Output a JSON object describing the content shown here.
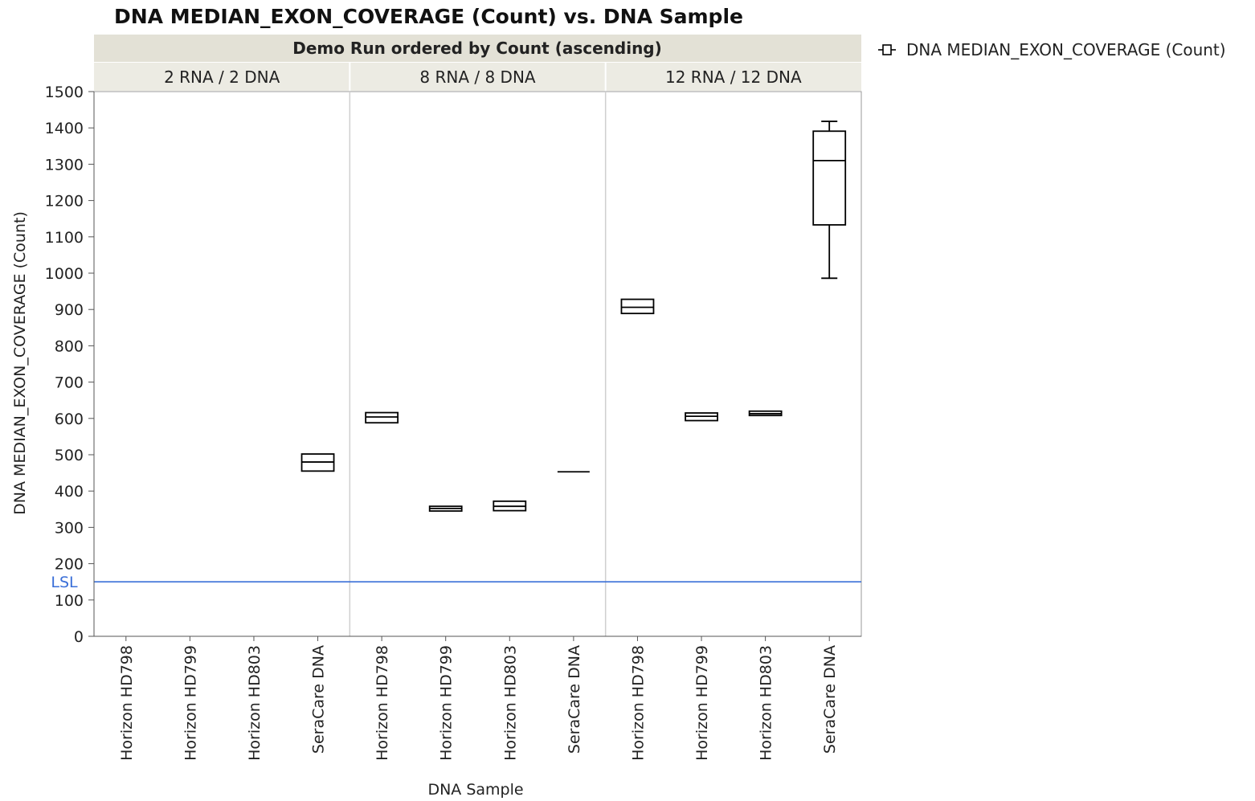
{
  "chart_data": {
    "type": "box",
    "title": "DNA MEDIAN_EXON_COVERAGE (Count) vs. DNA Sample",
    "group_header": "Demo Run ordered by Count (ascending)",
    "xlabel": "DNA Sample",
    "ylabel": "DNA MEDIAN_EXON_COVERAGE (Count)",
    "ylim": [
      0,
      1500
    ],
    "y_ticks": [
      0,
      100,
      200,
      300,
      400,
      500,
      600,
      700,
      800,
      900,
      1000,
      1100,
      1200,
      1300,
      1400,
      1500
    ],
    "legend": {
      "label": "DNA MEDIAN_EXON_COVERAGE (Count)",
      "position": "top-right"
    },
    "reference_line": {
      "label": "LSL",
      "value": 150,
      "color": "#3a6fd8"
    },
    "panels": [
      {
        "label": "2 RNA / 2 DNA",
        "categories": [
          "Horizon HD798",
          "Horizon HD799",
          "Horizon HD803",
          "SeraCare DNA"
        ],
        "boxes": [
          null,
          null,
          null,
          {
            "min": 455,
            "q1": 455,
            "median": 480,
            "q3": 502,
            "max": 502
          }
        ]
      },
      {
        "label": "8 RNA / 8 DNA",
        "categories": [
          "Horizon HD798",
          "Horizon HD799",
          "Horizon HD803",
          "SeraCare DNA"
        ],
        "boxes": [
          {
            "min": 588,
            "q1": 588,
            "median": 604,
            "q3": 616,
            "max": 616
          },
          {
            "min": 345,
            "q1": 345,
            "median": 352,
            "q3": 358,
            "max": 358
          },
          {
            "min": 346,
            "q1": 346,
            "median": 358,
            "q3": 372,
            "max": 372
          },
          {
            "min": 453,
            "q1": 453,
            "median": 453,
            "q3": 453,
            "max": 453
          }
        ]
      },
      {
        "label": "12 RNA / 12 DNA",
        "categories": [
          "Horizon HD798",
          "Horizon HD799",
          "Horizon HD803",
          "SeraCare DNA"
        ],
        "boxes": [
          {
            "min": 889,
            "q1": 889,
            "median": 906,
            "q3": 928,
            "max": 928
          },
          {
            "min": 594,
            "q1": 594,
            "median": 606,
            "q3": 615,
            "max": 615
          },
          {
            "min": 608,
            "q1": 608,
            "median": 613,
            "q3": 620,
            "max": 620
          },
          {
            "min": 986,
            "q1": 1133,
            "median": 1310,
            "q3": 1391,
            "max": 1418
          }
        ]
      }
    ],
    "colors": {
      "box": "#000000",
      "panel_divider": "#cfcfcf",
      "frame": "#9a9a9a",
      "header_bg": "#e3e1d6",
      "subheader_bg": "#ecebe3"
    }
  }
}
